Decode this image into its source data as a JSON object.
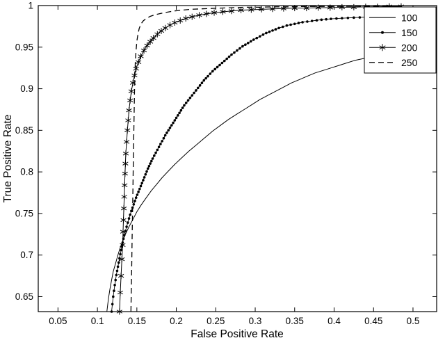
{
  "figure": {
    "type": "roc-curve-plot"
  },
  "chart_data": {
    "type": "line",
    "title": "",
    "xlabel": "False Positive Rate",
    "ylabel": "True Positive Rate",
    "xlim": [
      0.025,
      0.53
    ],
    "ylim": [
      0.632,
      1.0
    ],
    "xticks": [
      0.05,
      0.1,
      0.15,
      0.2,
      0.25,
      0.3,
      0.35,
      0.4,
      0.45,
      0.5
    ],
    "xtick_labels": [
      "0.05",
      "0.1",
      "0.15",
      "0.2",
      "0.25",
      "0.3",
      "0.35",
      "0.4",
      "0.45",
      "0.5"
    ],
    "yticks": [
      0.65,
      0.7,
      0.75,
      0.8,
      0.85,
      0.9,
      0.95,
      1.0
    ],
    "ytick_labels": [
      "0.65",
      "0.7",
      "0.75",
      "0.8",
      "0.85",
      "0.9",
      "0.95",
      "1"
    ],
    "grid": false,
    "legend_position": "top-right",
    "color": "#000000",
    "background": "#ffffff",
    "series": [
      {
        "name": "100",
        "style": "solid",
        "marker": "none",
        "width": 1,
        "points": [
          [
            0.112,
            0.632
          ],
          [
            0.114,
            0.648
          ],
          [
            0.116,
            0.66
          ],
          [
            0.118,
            0.67
          ],
          [
            0.12,
            0.68
          ],
          [
            0.123,
            0.69
          ],
          [
            0.126,
            0.7
          ],
          [
            0.129,
            0.709
          ],
          [
            0.132,
            0.717
          ],
          [
            0.136,
            0.726
          ],
          [
            0.14,
            0.734
          ],
          [
            0.145,
            0.743
          ],
          [
            0.15,
            0.752
          ],
          [
            0.156,
            0.761
          ],
          [
            0.162,
            0.769
          ],
          [
            0.168,
            0.777
          ],
          [
            0.175,
            0.785
          ],
          [
            0.182,
            0.793
          ],
          [
            0.19,
            0.801
          ],
          [
            0.198,
            0.809
          ],
          [
            0.207,
            0.817
          ],
          [
            0.216,
            0.825
          ],
          [
            0.226,
            0.833
          ],
          [
            0.236,
            0.841
          ],
          [
            0.246,
            0.849
          ],
          [
            0.256,
            0.856
          ],
          [
            0.266,
            0.863
          ],
          [
            0.276,
            0.869
          ],
          [
            0.286,
            0.875
          ],
          [
            0.296,
            0.881
          ],
          [
            0.306,
            0.887
          ],
          [
            0.316,
            0.892
          ],
          [
            0.326,
            0.897
          ],
          [
            0.336,
            0.902
          ],
          [
            0.346,
            0.907
          ],
          [
            0.356,
            0.911
          ],
          [
            0.366,
            0.915
          ],
          [
            0.376,
            0.919
          ],
          [
            0.386,
            0.922
          ],
          [
            0.396,
            0.925
          ],
          [
            0.406,
            0.928
          ],
          [
            0.416,
            0.931
          ],
          [
            0.426,
            0.934
          ],
          [
            0.436,
            0.936
          ],
          [
            0.446,
            0.938
          ],
          [
            0.456,
            0.94
          ],
          [
            0.468,
            0.9415
          ],
          [
            0.48,
            0.943
          ],
          [
            0.495,
            0.9445
          ],
          [
            0.51,
            0.9455
          ],
          [
            0.525,
            0.946
          ]
        ]
      },
      {
        "name": "150",
        "style": "solid",
        "marker": "dot",
        "width": 0.9,
        "points": [
          [
            0.118,
            0.632
          ],
          [
            0.12,
            0.65
          ],
          [
            0.122,
            0.664
          ],
          [
            0.124,
            0.676
          ],
          [
            0.126,
            0.686
          ],
          [
            0.128,
            0.696
          ],
          [
            0.13,
            0.706
          ],
          [
            0.132,
            0.715
          ],
          [
            0.134,
            0.724
          ],
          [
            0.137,
            0.734
          ],
          [
            0.14,
            0.744
          ],
          [
            0.143,
            0.753
          ],
          [
            0.146,
            0.761
          ],
          [
            0.149,
            0.769
          ],
          [
            0.152,
            0.776
          ],
          [
            0.155,
            0.783
          ],
          [
            0.158,
            0.79
          ],
          [
            0.161,
            0.797
          ],
          [
            0.164,
            0.804
          ],
          [
            0.167,
            0.81
          ],
          [
            0.17,
            0.816
          ],
          [
            0.174,
            0.823
          ],
          [
            0.178,
            0.83
          ],
          [
            0.182,
            0.837
          ],
          [
            0.186,
            0.844
          ],
          [
            0.19,
            0.85
          ],
          [
            0.194,
            0.856
          ],
          [
            0.198,
            0.862
          ],
          [
            0.202,
            0.868
          ],
          [
            0.206,
            0.874
          ],
          [
            0.21,
            0.88
          ],
          [
            0.215,
            0.886
          ],
          [
            0.22,
            0.892
          ],
          [
            0.225,
            0.898
          ],
          [
            0.23,
            0.904
          ],
          [
            0.235,
            0.91
          ],
          [
            0.24,
            0.915
          ],
          [
            0.246,
            0.921
          ],
          [
            0.252,
            0.926
          ],
          [
            0.258,
            0.931
          ],
          [
            0.264,
            0.936
          ],
          [
            0.27,
            0.941
          ],
          [
            0.277,
            0.946
          ],
          [
            0.284,
            0.951
          ],
          [
            0.291,
            0.955
          ],
          [
            0.298,
            0.959
          ],
          [
            0.306,
            0.963
          ],
          [
            0.314,
            0.967
          ],
          [
            0.322,
            0.97
          ],
          [
            0.33,
            0.973
          ],
          [
            0.34,
            0.976
          ],
          [
            0.35,
            0.978
          ],
          [
            0.36,
            0.98
          ],
          [
            0.372,
            0.9815
          ],
          [
            0.384,
            0.983
          ],
          [
            0.396,
            0.984
          ],
          [
            0.41,
            0.9848
          ],
          [
            0.425,
            0.9855
          ],
          [
            0.44,
            0.986
          ]
        ]
      },
      {
        "name": "200",
        "style": "solid",
        "marker": "asterisk",
        "width": 1,
        "points": [
          [
            0.128,
            0.632
          ],
          [
            0.129,
            0.655
          ],
          [
            0.13,
            0.675
          ],
          [
            0.131,
            0.695
          ],
          [
            0.132,
            0.712
          ],
          [
            0.1325,
            0.728
          ],
          [
            0.133,
            0.742
          ],
          [
            0.1335,
            0.756
          ],
          [
            0.134,
            0.77
          ],
          [
            0.1345,
            0.784
          ],
          [
            0.135,
            0.798
          ],
          [
            0.1355,
            0.81
          ],
          [
            0.136,
            0.822
          ],
          [
            0.137,
            0.836
          ],
          [
            0.138,
            0.85
          ],
          [
            0.139,
            0.862
          ],
          [
            0.14,
            0.874
          ],
          [
            0.1415,
            0.886
          ],
          [
            0.143,
            0.897
          ],
          [
            0.145,
            0.907
          ],
          [
            0.147,
            0.916
          ],
          [
            0.149,
            0.924
          ],
          [
            0.152,
            0.932
          ],
          [
            0.155,
            0.939
          ],
          [
            0.159,
            0.946
          ],
          [
            0.163,
            0.952
          ],
          [
            0.167,
            0.9565
          ],
          [
            0.171,
            0.961
          ],
          [
            0.176,
            0.9655
          ],
          [
            0.181,
            0.9695
          ],
          [
            0.186,
            0.973
          ],
          [
            0.192,
            0.9765
          ],
          [
            0.198,
            0.9795
          ],
          [
            0.205,
            0.982
          ],
          [
            0.212,
            0.9845
          ],
          [
            0.22,
            0.9865
          ],
          [
            0.229,
            0.9885
          ],
          [
            0.238,
            0.99
          ],
          [
            0.248,
            0.9915
          ],
          [
            0.259,
            0.9925
          ],
          [
            0.27,
            0.9935
          ],
          [
            0.282,
            0.9945
          ],
          [
            0.295,
            0.995
          ],
          [
            0.308,
            0.9955
          ],
          [
            0.322,
            0.996
          ],
          [
            0.336,
            0.9965
          ],
          [
            0.35,
            0.997
          ],
          [
            0.365,
            0.997
          ],
          [
            0.38,
            0.9975
          ],
          [
            0.395,
            0.9975
          ],
          [
            0.41,
            0.998
          ],
          [
            0.425,
            0.998
          ],
          [
            0.44,
            0.9985
          ],
          [
            0.455,
            0.9985
          ],
          [
            0.47,
            0.999
          ],
          [
            0.485,
            0.999
          ]
        ]
      },
      {
        "name": "250",
        "style": "dashed",
        "marker": "none",
        "width": 1.3,
        "points": [
          [
            0.1425,
            0.632
          ],
          [
            0.143,
            0.66
          ],
          [
            0.1435,
            0.69
          ],
          [
            0.144,
            0.72
          ],
          [
            0.1445,
            0.75
          ],
          [
            0.145,
            0.78
          ],
          [
            0.1455,
            0.81
          ],
          [
            0.146,
            0.84
          ],
          [
            0.1465,
            0.87
          ],
          [
            0.147,
            0.895
          ],
          [
            0.1475,
            0.915
          ],
          [
            0.148,
            0.932
          ],
          [
            0.149,
            0.946
          ],
          [
            0.15,
            0.957
          ],
          [
            0.1515,
            0.966
          ],
          [
            0.153,
            0.9725
          ],
          [
            0.155,
            0.9775
          ],
          [
            0.158,
            0.9815
          ],
          [
            0.162,
            0.9845
          ],
          [
            0.167,
            0.987
          ],
          [
            0.173,
            0.989
          ],
          [
            0.18,
            0.9905
          ],
          [
            0.188,
            0.992
          ],
          [
            0.197,
            0.9935
          ],
          [
            0.207,
            0.9945
          ],
          [
            0.218,
            0.9955
          ],
          [
            0.23,
            0.996
          ],
          [
            0.243,
            0.9965
          ],
          [
            0.257,
            0.997
          ],
          [
            0.272,
            0.9975
          ],
          [
            0.288,
            0.998
          ],
          [
            0.305,
            0.998
          ],
          [
            0.323,
            0.9985
          ],
          [
            0.342,
            0.9985
          ],
          [
            0.362,
            0.999
          ],
          [
            0.383,
            0.999
          ],
          [
            0.405,
            0.999
          ],
          [
            0.428,
            0.9992
          ],
          [
            0.452,
            0.9993
          ],
          [
            0.47,
            0.9995
          ]
        ]
      }
    ]
  }
}
